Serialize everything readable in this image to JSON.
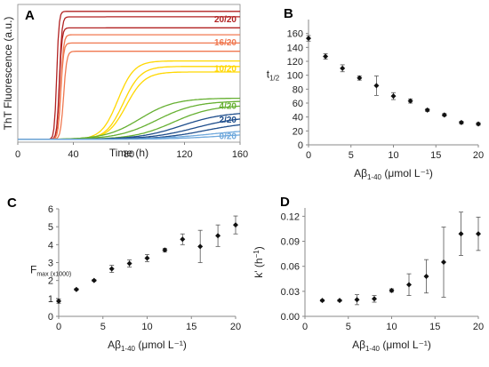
{
  "chart_data": [
    {
      "panel": "A",
      "type": "line",
      "xlabel": "Time (h)",
      "ylabel": "ThT Fluorescence (a.u.)",
      "xlim": [
        0,
        160
      ],
      "ylim": [
        0,
        1
      ],
      "xticks": [
        0,
        40,
        80,
        120,
        160
      ],
      "grid": false,
      "legend": "inline-right",
      "series": [
        {
          "name": "20/20",
          "color": "#b22222",
          "curves": [
            {
              "t": 28,
              "k": 1.2,
              "p": 0.95
            },
            {
              "t": 30,
              "k": 1.1,
              "p": 0.91
            },
            {
              "t": 30,
              "k": 1.1,
              "p": 0.83
            }
          ]
        },
        {
          "name": "16/20",
          "color": "#f07850",
          "curves": [
            {
              "t": 31,
              "k": 1.0,
              "p": 0.78
            },
            {
              "t": 31,
              "k": 1.0,
              "p": 0.72
            },
            {
              "t": 33,
              "k": 0.9,
              "p": 0.66
            }
          ]
        },
        {
          "name": "10/20",
          "color": "#ffd700",
          "curves": [
            {
              "t": 72,
              "k": 0.17,
              "p": 0.59
            },
            {
              "t": 76,
              "k": 0.16,
              "p": 0.55
            },
            {
              "t": 78,
              "k": 0.15,
              "p": 0.51
            }
          ]
        },
        {
          "name": "4/20",
          "color": "#66b032",
          "curves": [
            {
              "t": 88,
              "k": 0.08,
              "p": 0.32
            },
            {
              "t": 100,
              "k": 0.07,
              "p": 0.3
            },
            {
              "t": 112,
              "k": 0.07,
              "p": 0.27
            }
          ]
        },
        {
          "name": "2/20",
          "color": "#1f4e8c",
          "curves": [
            {
              "t": 118,
              "k": 0.065,
              "p": 0.22
            },
            {
              "t": 128,
              "k": 0.06,
              "p": 0.19
            },
            {
              "t": 135,
              "k": 0.06,
              "p": 0.15
            }
          ]
        },
        {
          "name": "0/20",
          "color": "#6fa8dc",
          "curves": [
            {
              "t": 140,
              "k": 0.05,
              "p": 0.1
            },
            {
              "t": 148,
              "k": 0.05,
              "p": 0.07
            }
          ]
        }
      ]
    },
    {
      "panel": "B",
      "type": "scatter",
      "xlabel_main": "Aβ",
      "xlabel_sub": "1-40",
      "xlabel_unit": " (μmol L⁻¹)",
      "ylabel_main": "t",
      "ylabel_sub": "1/2",
      "xlim": [
        0,
        20
      ],
      "ylim": [
        0,
        180
      ],
      "xticks": [
        0,
        5,
        10,
        15,
        20
      ],
      "yticks": [
        0,
        20,
        40,
        60,
        80,
        100,
        120,
        140,
        160
      ],
      "x": [
        0,
        2,
        4,
        6,
        8,
        10,
        12,
        14,
        16,
        18,
        20
      ],
      "y": [
        153,
        127,
        110,
        96,
        85,
        70,
        63,
        50,
        43,
        32,
        30
      ],
      "err": [
        4,
        4,
        5,
        3,
        14,
        5,
        3,
        2,
        2,
        2,
        2
      ]
    },
    {
      "panel": "C",
      "type": "scatter",
      "xlabel_main": "Aβ",
      "xlabel_sub": "1-40",
      "xlabel_unit": " (μmol L⁻¹)",
      "ylabel_main": "F",
      "ylabel_sub": "max (x1000)",
      "xlim": [
        0,
        20
      ],
      "ylim": [
        0,
        6
      ],
      "xticks": [
        0,
        5,
        10,
        15,
        20
      ],
      "yticks": [
        0,
        1,
        2,
        3,
        4,
        5,
        6
      ],
      "x": [
        0,
        2,
        4,
        6,
        8,
        10,
        12,
        14,
        16,
        18,
        20
      ],
      "y": [
        0.85,
        1.5,
        2.0,
        2.65,
        2.95,
        3.25,
        3.7,
        4.3,
        3.9,
        4.5,
        5.1
      ],
      "err": [
        0.12,
        0.05,
        0.05,
        0.2,
        0.2,
        0.2,
        0.1,
        0.3,
        0.9,
        0.6,
        0.5
      ]
    },
    {
      "panel": "D",
      "type": "scatter",
      "xlabel_main": "Aβ",
      "xlabel_sub": "1-40",
      "xlabel_unit": " (μmol L⁻¹)",
      "ylabel_main": "k' (h",
      "ylabel_sup": "−1",
      "ylabel_end": ")",
      "xlim": [
        0,
        20
      ],
      "ylim": [
        0,
        0.13
      ],
      "xticks": [
        0,
        5,
        10,
        15,
        20
      ],
      "yticks": [
        0,
        0.03,
        0.06,
        0.09,
        0.12
      ],
      "ytick_labels": [
        "0.00",
        "0.03",
        "0.06",
        "0.09",
        "0.12"
      ],
      "x": [
        2,
        4,
        6,
        8,
        10,
        12,
        14,
        16,
        18,
        20
      ],
      "y": [
        0.019,
        0.019,
        0.02,
        0.021,
        0.031,
        0.038,
        0.048,
        0.065,
        0.099,
        0.099
      ],
      "err": [
        0.001,
        0.001,
        0.006,
        0.004,
        0.002,
        0.013,
        0.02,
        0.042,
        0.026,
        0.02
      ]
    }
  ]
}
